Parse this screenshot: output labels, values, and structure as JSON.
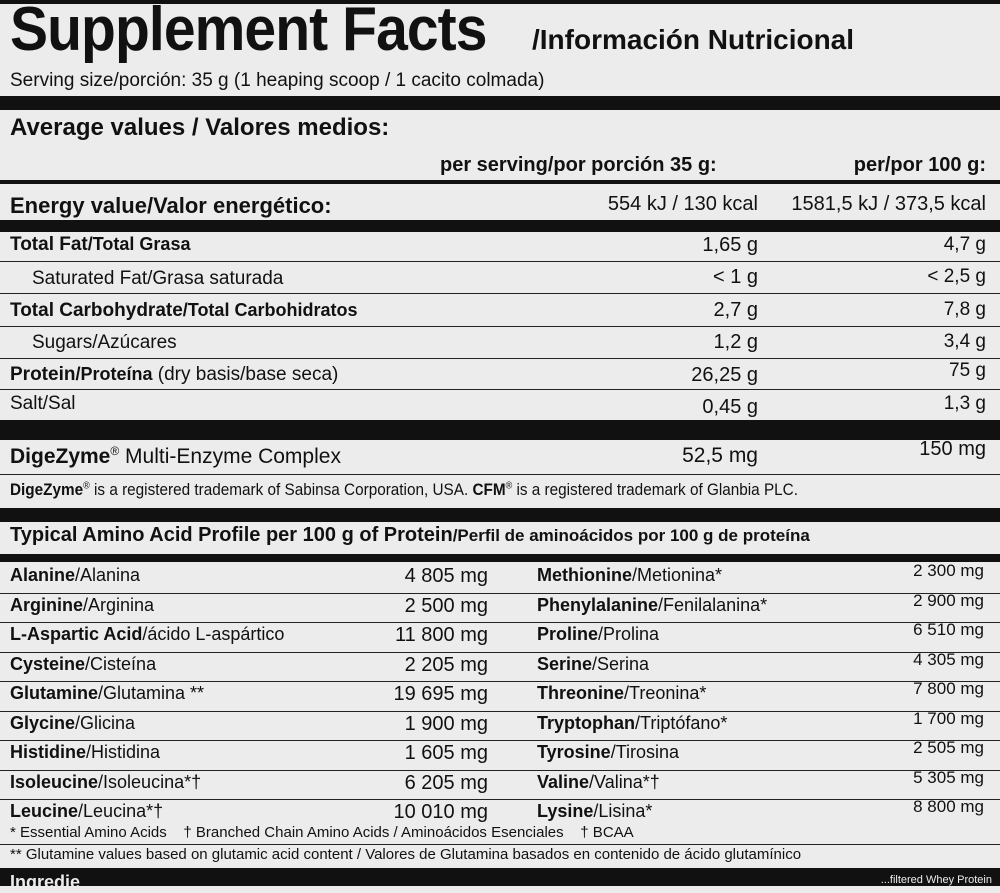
{
  "header": {
    "title": "Supplement Facts",
    "title_es": "/Información Nutricional",
    "serving": "Serving size/porción: 35 g (1 heaping scoop / 1 cacito colmada)"
  },
  "average": {
    "heading": "Average values / Valores medios:",
    "col_serving": "per serving/por porción 35 g:",
    "col_100g": "per/por 100 g:"
  },
  "energy": {
    "label": "Energy value/Valor energético:",
    "serving": "554 kJ / 130 kcal",
    "per100": "1581,5 kJ / 373,5 kcal"
  },
  "nutrients": [
    {
      "label_en": "Total Fat",
      "label_es": "/Total Grasa",
      "serving": "1,65 g",
      "per100": "4,7 g"
    },
    {
      "label_en": "Saturated Fat",
      "label_es": "/Grasa saturada",
      "serving": "< 1 g",
      "per100": "< 2,5 g"
    },
    {
      "label_en": "Total Carbohydrate",
      "label_es": "/Total Carbohidratos",
      "serving": "2,7 g",
      "per100": "7,8 g"
    },
    {
      "label_en": "Sugars",
      "label_es": "/Azúcares",
      "serving": "1,2 g",
      "per100": "3,4 g"
    },
    {
      "label_en": "Protein",
      "label_es": "/Proteína",
      "label_extra": " (dry basis/base seca)",
      "serving": "26,25 g",
      "per100": "75 g"
    },
    {
      "label_en": "Salt",
      "label_es": "/Sal",
      "serving": "0,45 g",
      "per100": "1,3 g"
    }
  ],
  "enzyme": {
    "name": "DigeZyme",
    "reg": "®",
    "rest": " Multi-Enzyme Complex",
    "serving": "52,5 mg",
    "per100": "150 mg",
    "note_a": "DigeZyme",
    "note_b": " is a registered trademark of Sabinsa Corporation, USA. ",
    "note_c": "CFM",
    "note_d": " is a registered trademark of Glanbia PLC."
  },
  "amino": {
    "heading_en": "Typical Amino Acid Profile per 100 g of Protein",
    "heading_es": "/Perfil de aminoácidos por 100 g de proteína",
    "left": [
      {
        "en": "Alanine",
        "es": "/Alanina",
        "value": "4 805 mg"
      },
      {
        "en": "Arginine",
        "es": "/Arginina",
        "value": "2 500 mg"
      },
      {
        "en": "L-Aspartic Acid",
        "es": "/ácido L-aspártico",
        "value": "11 800 mg"
      },
      {
        "en": "Cysteine",
        "es": "/Cisteína",
        "value": "2 205 mg"
      },
      {
        "en": "Glutamine",
        "es": "/Glutamina **",
        "value": "19 695 mg"
      },
      {
        "en": "Glycine",
        "es": "/Glicina",
        "value": "1 900 mg"
      },
      {
        "en": "Histidine",
        "es": "/Histidina",
        "value": "1 605 mg"
      },
      {
        "en": "Isoleucine",
        "es": "/Isoleucina*†",
        "value": "6 205 mg"
      },
      {
        "en": "Leucine",
        "es": "/Leucina*†",
        "value": "10 010 mg"
      }
    ],
    "right": [
      {
        "en": "Methionine",
        "es": "/Metionina*",
        "value": "2 300 mg"
      },
      {
        "en": "Phenylalanine",
        "es": "/Fenilalanina*",
        "value": "2 900 mg"
      },
      {
        "en": "Proline",
        "es": "/Prolina",
        "value": "6 510 mg"
      },
      {
        "en": "Serine",
        "es": "/Serina",
        "value": "4 305 mg"
      },
      {
        "en": "Threonine",
        "es": "/Treonina*",
        "value": "7 800 mg"
      },
      {
        "en": "Tryptophan",
        "es": "/Triptófano*",
        "value": "1 700 mg"
      },
      {
        "en": "Tyrosine",
        "es": "/Tirosina",
        "value": "2 505 mg"
      },
      {
        "en": "Valine",
        "es": "/Valina*†",
        "value": "5 305 mg"
      },
      {
        "en": "Lysine",
        "es": "/Lisina*",
        "value": "8 800 mg"
      }
    ],
    "foot1": "* Essential Amino Acids    † Branched Chain Amino Acids / Aminoácidos Esenciales    † BCAA",
    "foot2": "** Glutamine values based on glutamic acid content / Valores de Glutamina basados en contenido de ácido glutamínico"
  },
  "bottom": {
    "left": "Ingredie",
    "right": "...filtered Whey Protein"
  }
}
